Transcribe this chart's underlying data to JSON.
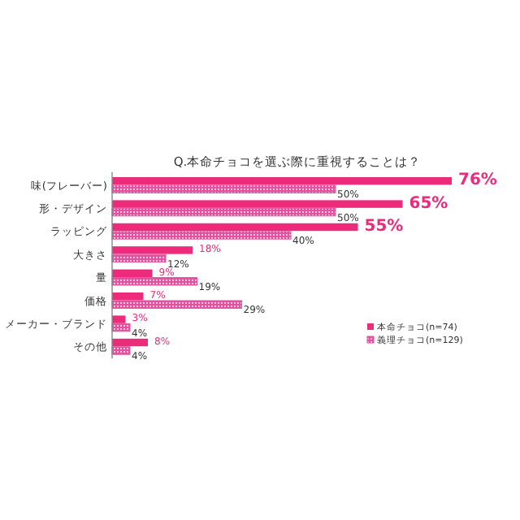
{
  "chart_data": {
    "type": "bar",
    "orientation": "horizontal",
    "title": "Q.本命チョコを選ぶ際に重視することは？",
    "categories": [
      "味(フレーバー)",
      "形・デザイン",
      "ラッピング",
      "大きさ",
      "量",
      "価格",
      "メーカー・ブランド",
      "その他"
    ],
    "series": [
      {
        "name": "本命チョコ(n=74)",
        "color": "#ee2a7b",
        "values": [
          76,
          65,
          55,
          18,
          9,
          7,
          3,
          8
        ],
        "value_labels": [
          "76%",
          "65%",
          "55%",
          "18%",
          "9%",
          "7%",
          "3%",
          "8%"
        ]
      },
      {
        "name": "義理チョコ(n=129)",
        "color": "#e2529f",
        "values": [
          50,
          50,
          40,
          12,
          19,
          29,
          4,
          4
        ],
        "value_labels": [
          "50%",
          "50%",
          "40%",
          "12%",
          "19%",
          "29%",
          "4%",
          "4%"
        ]
      }
    ],
    "legend": "bottom right"
  }
}
